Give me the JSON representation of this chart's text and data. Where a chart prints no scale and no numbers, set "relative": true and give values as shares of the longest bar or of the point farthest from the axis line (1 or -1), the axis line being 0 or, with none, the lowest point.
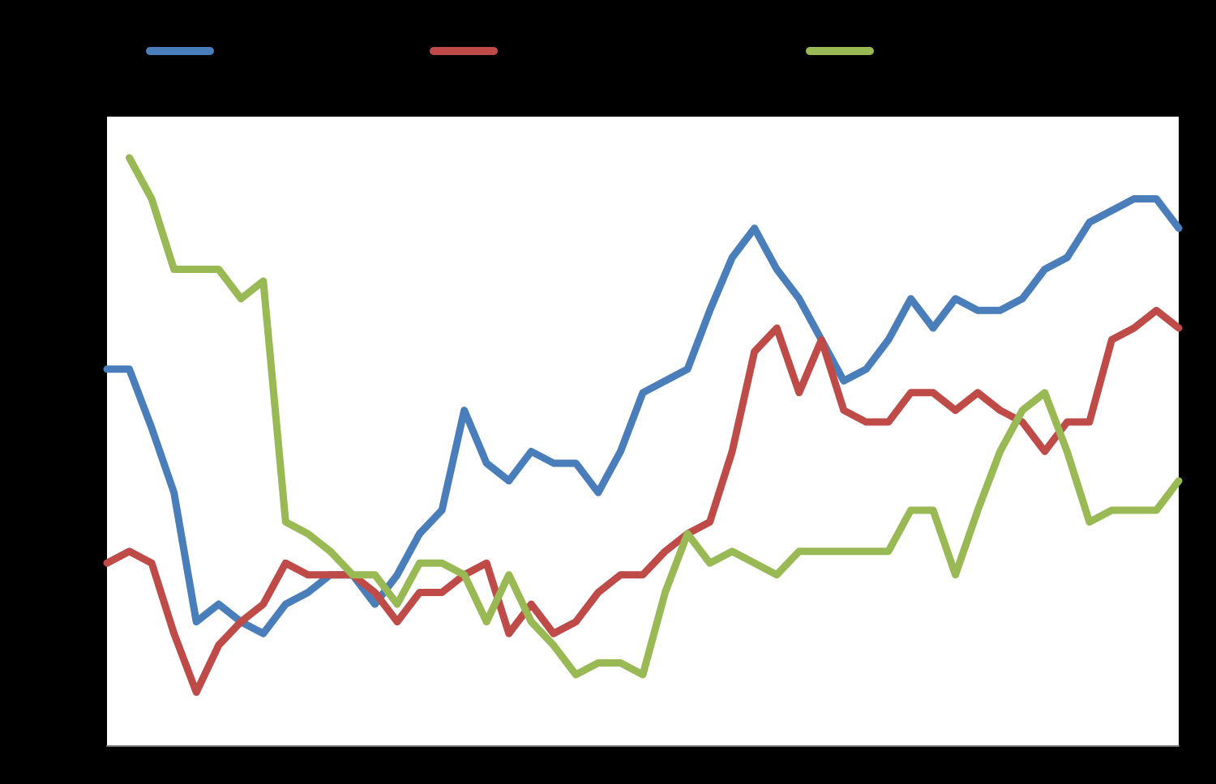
{
  "chart_data": {
    "type": "line",
    "relative": true,
    "grid": false,
    "marker": "none",
    "line_style": "solid",
    "categories": [
      null,
      null,
      null,
      null,
      null,
      null,
      null,
      null,
      null,
      null,
      null,
      null,
      null,
      null,
      null,
      null,
      null,
      null,
      null,
      null,
      null,
      null,
      null,
      null,
      null,
      null,
      null,
      null,
      null,
      null,
      null,
      null,
      null,
      null,
      null,
      null,
      null,
      null,
      null,
      null,
      null,
      null,
      null,
      null,
      null,
      null,
      null,
      null,
      null
    ],
    "series": [
      {
        "color": "#4a7ebb",
        "values": [
          0.64,
          0.64,
          0.54,
          0.43,
          0.21,
          0.24,
          0.21,
          0.19,
          0.24,
          0.26,
          0.29,
          0.29,
          0.24,
          0.29,
          0.36,
          0.4,
          0.57,
          0.48,
          0.45,
          0.5,
          0.48,
          0.48,
          0.43,
          0.5,
          0.6,
          0.62,
          0.64,
          0.74,
          0.83,
          0.88,
          0.81,
          0.76,
          0.69,
          0.62,
          0.64,
          0.69,
          0.76,
          0.71,
          0.76,
          0.74,
          0.74,
          0.76,
          0.81,
          0.83,
          0.89,
          0.91,
          0.93,
          0.93,
          0.88
        ]
      },
      {
        "color": "#be4b48",
        "values": [
          0.31,
          0.33,
          0.31,
          0.19,
          0.09,
          0.17,
          0.21,
          0.24,
          0.31,
          0.29,
          0.29,
          0.29,
          0.26,
          0.21,
          0.26,
          0.26,
          0.29,
          0.31,
          0.19,
          0.24,
          0.19,
          0.21,
          0.26,
          0.29,
          0.29,
          0.33,
          0.36,
          0.38,
          0.5,
          0.67,
          0.71,
          0.6,
          0.69,
          0.57,
          0.55,
          0.55,
          0.6,
          0.6,
          0.57,
          0.6,
          0.57,
          0.55,
          0.5,
          0.55,
          0.55,
          0.69,
          0.71,
          0.74,
          0.71
        ]
      },
      {
        "color": "#98b954",
        "values": [
          null,
          1.0,
          0.93,
          0.81,
          0.81,
          0.81,
          0.76,
          0.79,
          0.38,
          0.36,
          0.33,
          0.29,
          0.29,
          0.24,
          0.31,
          0.31,
          0.29,
          0.21,
          0.29,
          0.21,
          0.17,
          0.12,
          0.14,
          0.14,
          0.12,
          0.26,
          0.36,
          0.31,
          0.33,
          0.31,
          0.29,
          0.33,
          0.33,
          0.33,
          0.33,
          0.33,
          0.4,
          0.4,
          0.29,
          0.4,
          0.5,
          0.57,
          0.6,
          0.5,
          0.38,
          0.4,
          0.4,
          0.4,
          0.45
        ]
      }
    ]
  }
}
